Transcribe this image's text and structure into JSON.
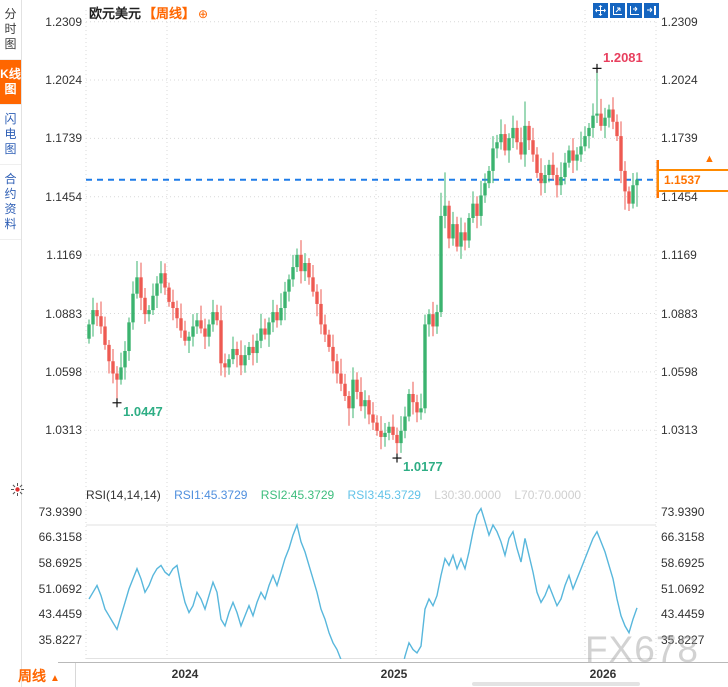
{
  "sidebar": {
    "tabs": [
      {
        "label": "分时图",
        "active": false
      },
      {
        "label": "K线图",
        "active": true
      },
      {
        "label": "闪电图",
        "active": false
      },
      {
        "label": "合约资料",
        "active": false
      }
    ]
  },
  "header": {
    "symbol": "欧元美元",
    "period_tag": "【周线】",
    "circle_plus_icon": "⊕"
  },
  "toolbar": {
    "icons": [
      {
        "name": "pan-move-icon"
      },
      {
        "name": "auto-fit-scale-icon"
      },
      {
        "name": "axis-zoom-icon"
      },
      {
        "name": "collapse-right-icon"
      }
    ]
  },
  "main_chart": {
    "current_price_label": "1.1537",
    "current_price_arrow": "▲"
  },
  "rsi_panel": {
    "header": {
      "title": "RSI(14,14,14)",
      "rsi1": "RSI1:45.3729",
      "rsi2": "RSI2:45.3729",
      "rsi3": "RSI3:45.3729",
      "l30": "L30:30.0000",
      "l70": "L70:70.0000"
    },
    "settings_icon": "indicator-settings-icon"
  },
  "footer": {
    "period_label": "周线",
    "arrow": "▲"
  },
  "watermark": {
    "text": "FX678"
  },
  "chart_data": {
    "type": "candlestick",
    "title": "欧元美元 周线 (EUR/USD weekly)",
    "price_axis": {
      "ticks": [
        1.2309,
        1.2024,
        1.1739,
        1.1454,
        1.1169,
        1.0883,
        1.0598,
        1.0313
      ]
    },
    "rsi_axis": {
      "ticks": [
        73.939,
        66.3158,
        58.6925,
        51.0692,
        43.4459,
        35.8227
      ]
    },
    "x_axis": {
      "years": [
        {
          "label": "2024",
          "week_index": 19.5
        },
        {
          "label": "2025",
          "week_index": 71.75
        },
        {
          "label": "2026",
          "week_index": 124
        }
      ]
    },
    "current_price": 1.1537,
    "rsi_guides": [
      70,
      30
    ],
    "first_open": 1.076,
    "weekly_closes": [
      1.083,
      1.09,
      1.087,
      1.082,
      1.073,
      1.065,
      1.059,
      1.056,
      1.062,
      1.07,
      1.084,
      1.098,
      1.106,
      1.096,
      1.088,
      1.09,
      1.097,
      1.103,
      1.108,
      1.101,
      1.094,
      1.091,
      1.086,
      1.08,
      1.075,
      1.077,
      1.082,
      1.085,
      1.081,
      1.077,
      1.083,
      1.089,
      1.085,
      1.064,
      1.062,
      1.066,
      1.071,
      1.068,
      1.063,
      1.068,
      1.072,
      1.069,
      1.075,
      1.081,
      1.078,
      1.084,
      1.089,
      1.085,
      1.091,
      1.099,
      1.105,
      1.111,
      1.117,
      1.109,
      1.113,
      1.106,
      1.099,
      1.093,
      1.083,
      1.078,
      1.072,
      1.065,
      1.059,
      1.054,
      1.048,
      1.042,
      1.056,
      1.05,
      1.043,
      1.046,
      1.039,
      1.035,
      1.031,
      1.028,
      1.03,
      1.033,
      1.029,
      1.025,
      1.031,
      1.038,
      1.049,
      1.045,
      1.04,
      1.042,
      1.083,
      1.088,
      1.082,
      1.089,
      1.136,
      1.141,
      1.125,
      1.132,
      1.121,
      1.128,
      1.124,
      1.135,
      1.142,
      1.136,
      1.146,
      1.152,
      1.158,
      1.169,
      1.172,
      1.176,
      1.168,
      1.174,
      1.179,
      1.172,
      1.166,
      1.18,
      1.173,
      1.166,
      1.157,
      1.152,
      1.156,
      1.161,
      1.156,
      1.151,
      1.155,
      1.162,
      1.168,
      1.163,
      1.166,
      1.17,
      1.175,
      1.179,
      1.185,
      1.186,
      1.18,
      1.184,
      1.188,
      1.182,
      1.175,
      1.158,
      1.148,
      1.142,
      1.151,
      1.1537
    ],
    "extremes": {
      "7": {
        "low": 1.0447
      },
      "12": {
        "high": 1.114
      },
      "18": {
        "high": 1.1139
      },
      "52": {
        "high": 1.1201
      },
      "65": {
        "low": 1.0335
      },
      "77": {
        "low": 1.0177
      },
      "88": {
        "high": 1.1473
      },
      "89": {
        "high": 1.1573
      },
      "109": {
        "high": 1.1919
      },
      "127": {
        "high": 1.2081
      },
      "134": {
        "low": 1.139
      },
      "137": {
        "low": 1.1405
      }
    },
    "rsi_values": [
      48,
      50,
      52,
      49,
      45,
      43,
      41,
      39,
      43,
      47,
      51,
      54,
      57,
      54,
      50,
      52,
      55,
      57,
      58,
      56,
      55,
      57,
      58,
      52,
      47,
      44,
      46,
      50,
      48,
      45,
      49,
      53,
      50,
      42,
      40,
      44,
      47,
      44,
      40,
      43,
      46,
      43,
      47,
      50,
      48,
      52,
      55,
      52,
      56,
      60,
      63,
      67,
      70,
      65,
      62,
      58,
      54,
      50,
      45,
      42,
      38,
      35,
      33,
      30,
      28,
      25,
      29,
      27,
      24,
      28,
      26,
      25,
      24,
      23,
      25,
      27,
      24,
      22,
      26,
      31,
      35,
      33,
      32,
      34,
      45,
      48,
      46,
      49,
      55,
      60,
      58,
      61,
      57,
      60,
      57,
      62,
      68,
      73,
      74.9,
      71,
      67,
      70,
      68,
      65,
      61,
      66,
      68,
      63,
      59,
      66,
      61,
      56,
      50,
      47,
      49,
      52,
      49,
      46,
      48,
      52,
      55,
      51,
      54,
      57,
      60,
      63,
      66,
      68,
      65,
      62,
      58,
      54,
      48,
      43,
      40,
      38,
      42,
      45.3729
    ],
    "annotations": [
      {
        "label": "1.2081",
        "price": 1.2081,
        "index": 127,
        "kind": "high"
      },
      {
        "label": "1.0447",
        "price": 1.0447,
        "index": 7,
        "kind": "low"
      },
      {
        "label": "1.0177",
        "price": 1.0177,
        "index": 77,
        "kind": "low"
      }
    ],
    "colors": {
      "up": "#3bb36f",
      "down": "#ee5a52",
      "rsi_line": "#58b7dc",
      "price_line": "#1e7ce8",
      "accent_orange": "#ff7300",
      "annotation_high": "#e83f5e",
      "annotation_low": "#2fae85",
      "grid": "#d9d9d9",
      "guide": "#e2e2e2"
    }
  }
}
